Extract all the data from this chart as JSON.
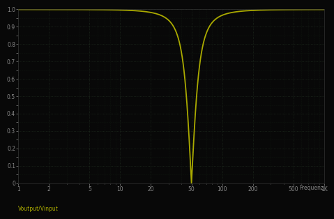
{
  "xlabel": "Frequenz",
  "ylabel": "Voutput/Vinput",
  "bg_color": "#080808",
  "line_color": "#aaaa00",
  "tick_label_color": "#888888",
  "axis_label_color": "#888888",
  "ylabel_color": "#aaaa00",
  "f_min": 1,
  "f_max": 1000,
  "f_notch": 50,
  "Q": 2.5,
  "y_min": 0,
  "y_max": 1.0,
  "yticks": [
    0,
    0.1,
    0.2,
    0.3,
    0.4,
    0.5,
    0.6,
    0.7,
    0.8,
    0.9,
    1.0
  ],
  "ytick_labels": [
    "0",
    "0.1",
    "0.2",
    "0.3",
    "0.4",
    "0.5",
    "0.6",
    "0.7",
    "0.8",
    "0.9",
    "1.0"
  ],
  "xtick_vals": [
    1,
    2,
    5,
    10,
    20,
    50,
    100,
    200,
    500,
    1000
  ],
  "xtick_labels": [
    "1",
    "2",
    "5",
    "10",
    "20",
    "50",
    "100",
    "200",
    "500",
    "1K"
  ],
  "grid_major_color": "#1e2a1e",
  "grid_minor_color": "#141e14",
  "line_width": 1.3
}
